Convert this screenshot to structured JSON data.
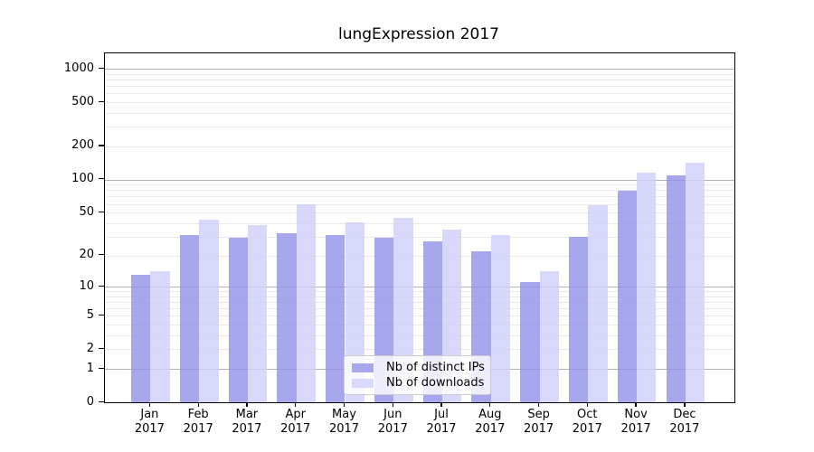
{
  "chart_data": {
    "type": "bar",
    "title": "lungExpression 2017",
    "xlabel": "",
    "ylabel": "",
    "categories": [
      "Jan",
      "Feb",
      "Mar",
      "Apr",
      "May",
      "Jun",
      "Jul",
      "Aug",
      "Sep",
      "Oct",
      "Nov",
      "Dec"
    ],
    "year_label": "2017",
    "series": [
      {
        "name": "Nb of distinct IPs",
        "color": "#a7a7ee",
        "rgba": "rgba(145,145,234,0.8)",
        "values": [
          13,
          31,
          29,
          32,
          31,
          29,
          27,
          22,
          11,
          30,
          79,
          109
        ]
      },
      {
        "name": "Nb of downloads",
        "color": "#d8d8fa",
        "rgba": "rgba(206,206,249,0.8)",
        "values": [
          14,
          43,
          38,
          60,
          41,
          45,
          35,
          31,
          14,
          58,
          116,
          141
        ]
      }
    ],
    "yscale": "log1p",
    "ylim": [
      0,
      1380
    ],
    "y_ticks": [
      0,
      1,
      2,
      5,
      10,
      20,
      50,
      100,
      200,
      500,
      1000
    ],
    "grid": {
      "on": true,
      "major": [
        1,
        10,
        100,
        1000
      ],
      "minor_base": [
        2,
        3,
        4,
        5,
        6,
        7,
        8,
        9
      ],
      "minor_decades": [
        1,
        10,
        100
      ],
      "major_color": "#b3b3b3",
      "minor_color": "#e9e9e9"
    },
    "legend": {
      "position": "inside-bottom-center",
      "entries": [
        "Nb of distinct IPs",
        "Nb of downloads"
      ]
    }
  }
}
